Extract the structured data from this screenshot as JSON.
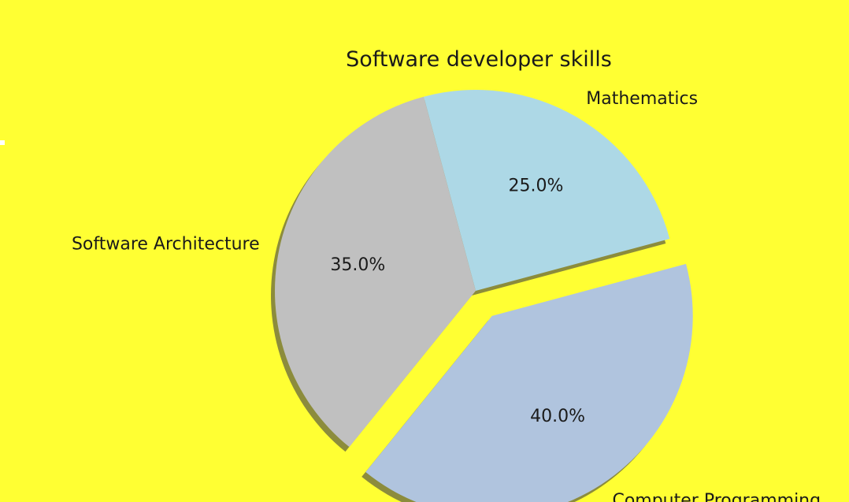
{
  "chart_data": {
    "type": "pie",
    "title": "Software developer skills",
    "slices": [
      {
        "label": "Mathematics",
        "value": 25.0,
        "pct_label": "25.0%",
        "color": "#ADD8E6",
        "exploded": false
      },
      {
        "label": "Software Architecture",
        "value": 35.0,
        "pct_label": "35.0%",
        "color": "#C0C0C0",
        "exploded": false
      },
      {
        "label": "Computer Programming",
        "value": 40.0,
        "pct_label": "40.0%",
        "color": "#B0C4DE",
        "exploded": true
      }
    ],
    "shadow": true,
    "legend": "none"
  },
  "colors": {
    "background": "#FFFF33",
    "shadow": "#8C8C3C",
    "text": "#1a1a1a"
  }
}
